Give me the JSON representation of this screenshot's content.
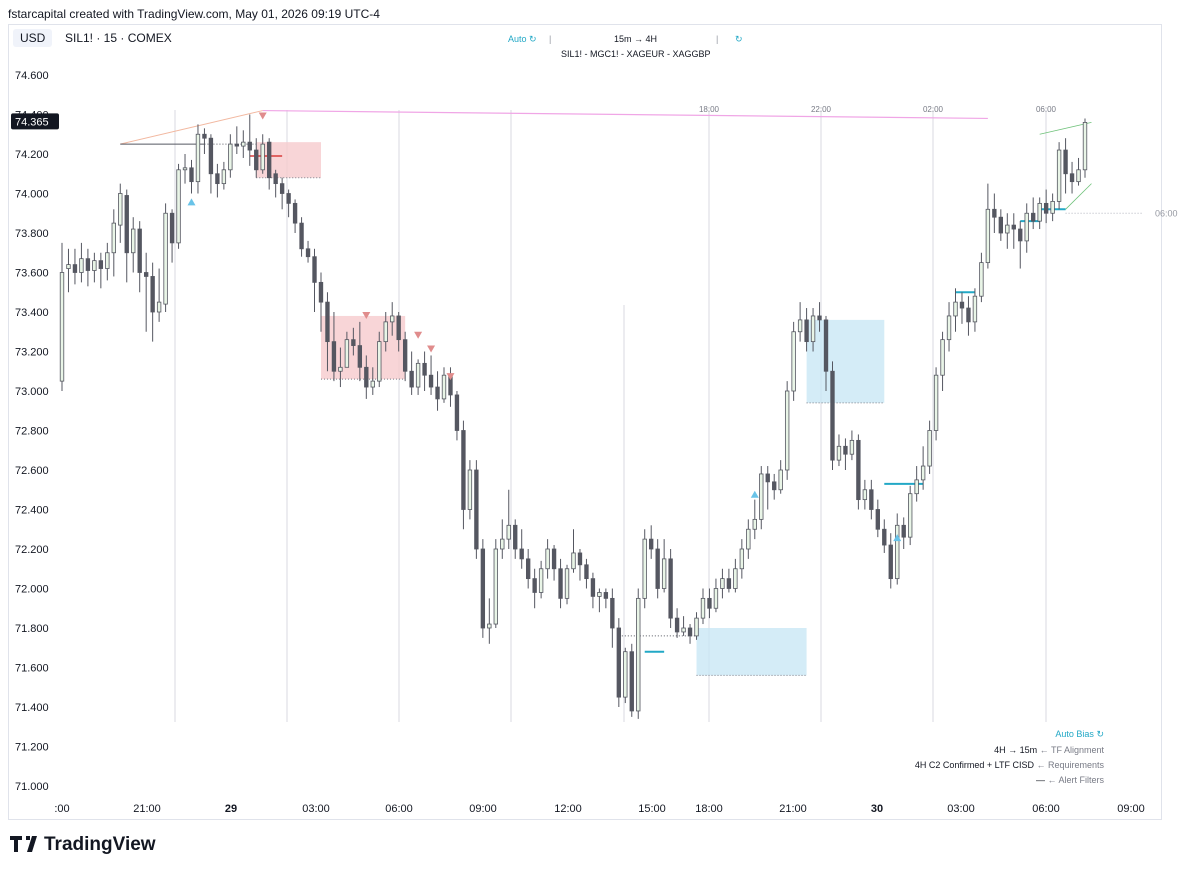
{
  "header": {
    "attribution": "fstarcapital created with TradingView.com, May 01, 2026 09:19 UTC-4"
  },
  "toolbar": {
    "currency": "USD",
    "symbol": "SIL1! · 15 · COMEX"
  },
  "top_widget": {
    "auto_label": "Auto",
    "timeframes": "15m → 4H",
    "symbols": "SIL1! - MGC1! - XAGEUR - XAGGBP"
  },
  "legend": {
    "title": "Auto Bias",
    "rows": [
      {
        "value": "4H → 15m",
        "hint": "← TF Alignment"
      },
      {
        "value": "4H C2 Confirmed + LTF CISD",
        "hint": "← Requirements"
      },
      {
        "value": "—",
        "hint": "← Alert Filters"
      }
    ]
  },
  "colors": {
    "bull_body": "#e9f5e7",
    "bear_body": "#555761",
    "wick": "#555761",
    "bear_zone": "#f6cbcd",
    "bull_zone": "#c9e7f5",
    "accent_cyan": "#22a8c6",
    "marker_up": "#69c3e8",
    "marker_down": "#e08c8c",
    "pink_line": "#f0a6e6"
  },
  "brand": {
    "name": "TradingView"
  },
  "chart_data": {
    "type": "candlestick",
    "interval": "15",
    "ylim": [
      70.95,
      74.65
    ],
    "y_ticks": [
      "74.600",
      "74.400",
      "74.200",
      "74.000",
      "73.800",
      "73.600",
      "73.400",
      "73.200",
      "73.000",
      "72.800",
      "72.600",
      "72.400",
      "72.200",
      "72.000",
      "71.800",
      "71.600",
      "71.400",
      "71.200",
      "71.000"
    ],
    "last_price": "74.365",
    "x_ticks": [
      ":00",
      "21:00",
      "29",
      "03:00",
      "06:00",
      "09:00",
      "12:00",
      "15:00",
      "18:00",
      "21:00",
      "30",
      "03:00",
      "06:00",
      "09:00"
    ],
    "session_labels": [
      "18:00",
      "22:00",
      "02:00",
      "06:00"
    ],
    "right_label": "06:00",
    "candles": [
      [
        73.05,
        73.6,
        73.75,
        73.0
      ],
      [
        73.62,
        73.64,
        73.72,
        73.5
      ],
      [
        73.64,
        73.6,
        73.72,
        73.54
      ],
      [
        73.6,
        73.67,
        73.75,
        73.55
      ],
      [
        73.67,
        73.61,
        73.72,
        73.53
      ],
      [
        73.61,
        73.66,
        73.7,
        73.55
      ],
      [
        73.66,
        73.62,
        73.7,
        73.52
      ],
      [
        73.62,
        73.7,
        73.75,
        73.56
      ],
      [
        73.7,
        73.85,
        73.92,
        73.58
      ],
      [
        73.84,
        74.0,
        74.05,
        73.75
      ],
      [
        73.99,
        73.7,
        74.02,
        73.55
      ],
      [
        73.7,
        73.82,
        73.88,
        73.6
      ],
      [
        73.82,
        73.6,
        73.86,
        73.5
      ],
      [
        73.6,
        73.58,
        73.7,
        73.3
      ],
      [
        73.58,
        73.4,
        73.65,
        73.25
      ],
      [
        73.4,
        73.45,
        73.62,
        73.35
      ],
      [
        73.44,
        73.9,
        73.95,
        73.4
      ],
      [
        73.9,
        73.75,
        73.92,
        73.65
      ],
      [
        73.75,
        74.12,
        74.15,
        73.72
      ],
      [
        74.12,
        74.13,
        74.2,
        74.05
      ],
      [
        74.13,
        74.06,
        74.17,
        74.0
      ],
      [
        74.06,
        74.3,
        74.35,
        74.0
      ],
      [
        74.3,
        74.28,
        74.33,
        74.2
      ],
      [
        74.28,
        74.1,
        74.3,
        74.0
      ],
      [
        74.1,
        74.05,
        74.15,
        73.98
      ],
      [
        74.05,
        74.12,
        74.16,
        74.02
      ],
      [
        74.12,
        74.25,
        74.3,
        74.08
      ],
      [
        74.25,
        74.24,
        74.34,
        74.2
      ],
      [
        74.24,
        74.26,
        74.32,
        74.18
      ],
      [
        74.26,
        74.22,
        74.4,
        74.14
      ],
      [
        74.22,
        74.12,
        74.28,
        74.08
      ],
      [
        74.12,
        74.25,
        74.3,
        74.1
      ],
      [
        74.26,
        74.08,
        74.28,
        74.02
      ],
      [
        74.1,
        74.05,
        74.12,
        73.98
      ],
      [
        74.05,
        74.0,
        74.08,
        73.92
      ],
      [
        74.0,
        73.95,
        74.02,
        73.88
      ],
      [
        73.95,
        73.85,
        73.97,
        73.8
      ],
      [
        73.85,
        73.72,
        73.88,
        73.68
      ],
      [
        73.72,
        73.68,
        73.76,
        73.65
      ],
      [
        73.68,
        73.55,
        73.72,
        73.4
      ],
      [
        73.55,
        73.45,
        73.6,
        73.3
      ],
      [
        73.45,
        73.25,
        73.5,
        73.1
      ],
      [
        73.25,
        73.1,
        73.4,
        73.05
      ],
      [
        73.1,
        73.12,
        73.22,
        73.02
      ],
      [
        73.12,
        73.26,
        73.3,
        73.15
      ],
      [
        73.26,
        73.23,
        73.32,
        73.18
      ],
      [
        73.23,
        73.12,
        73.35,
        73.05
      ],
      [
        73.12,
        73.02,
        73.18,
        72.96
      ],
      [
        73.02,
        73.05,
        73.12,
        72.98
      ],
      [
        73.05,
        73.25,
        73.3,
        73.02
      ],
      [
        73.25,
        73.35,
        73.4,
        73.2
      ],
      [
        73.35,
        73.38,
        73.45,
        73.28
      ],
      [
        73.38,
        73.26,
        73.4,
        73.2
      ],
      [
        73.26,
        73.1,
        73.3,
        73.05
      ],
      [
        73.1,
        73.02,
        73.2,
        72.98
      ],
      [
        73.02,
        73.14,
        73.16,
        72.98
      ],
      [
        73.14,
        73.08,
        73.2,
        73.0
      ],
      [
        73.08,
        73.02,
        73.18,
        72.98
      ],
      [
        73.02,
        72.96,
        73.1,
        72.9
      ],
      [
        72.96,
        73.08,
        73.12,
        72.94
      ],
      [
        73.08,
        72.98,
        73.12,
        72.92
      ],
      [
        72.98,
        72.8,
        73.0,
        72.75
      ],
      [
        72.8,
        72.4,
        72.85,
        72.3
      ],
      [
        72.4,
        72.6,
        72.65,
        72.35
      ],
      [
        72.6,
        72.2,
        72.65,
        72.15
      ],
      [
        72.2,
        71.8,
        72.25,
        71.75
      ],
      [
        71.8,
        71.82,
        71.95,
        71.72
      ],
      [
        71.82,
        72.2,
        72.25,
        71.8
      ],
      [
        72.2,
        72.25,
        72.35,
        72.15
      ],
      [
        72.25,
        72.32,
        72.5,
        72.2
      ],
      [
        72.32,
        72.2,
        72.35,
        72.15
      ],
      [
        72.2,
        72.15,
        72.3,
        72.1
      ],
      [
        72.15,
        72.05,
        72.2,
        72.0
      ],
      [
        72.05,
        71.98,
        72.1,
        71.9
      ],
      [
        71.98,
        72.1,
        72.14,
        71.95
      ],
      [
        72.1,
        72.2,
        72.25,
        72.05
      ],
      [
        72.2,
        72.1,
        72.22,
        72.04
      ],
      [
        72.1,
        71.95,
        72.15,
        71.9
      ],
      [
        71.95,
        72.1,
        72.12,
        71.92
      ],
      [
        72.1,
        72.18,
        72.3,
        72.08
      ],
      [
        72.18,
        72.12,
        72.2,
        72.04
      ],
      [
        72.12,
        72.05,
        72.15,
        72.0
      ],
      [
        72.05,
        71.96,
        72.08,
        71.9
      ],
      [
        71.96,
        71.98,
        72.0,
        71.88
      ],
      [
        71.98,
        71.95,
        72.0,
        71.9
      ],
      [
        71.95,
        71.8,
        72.0,
        71.7
      ],
      [
        71.8,
        71.45,
        71.85,
        71.4
      ],
      [
        71.45,
        71.68,
        71.7,
        71.42
      ],
      [
        71.68,
        71.38,
        71.72,
        71.35
      ],
      [
        71.38,
        71.95,
        72.0,
        71.34
      ],
      [
        71.95,
        72.25,
        72.3,
        71.9
      ],
      [
        72.25,
        72.2,
        72.32,
        72.15
      ],
      [
        72.2,
        72.0,
        72.25,
        71.95
      ],
      [
        72.0,
        72.15,
        72.25,
        71.98
      ],
      [
        72.15,
        71.85,
        72.2,
        71.8
      ],
      [
        71.85,
        71.78,
        71.9,
        71.75
      ],
      [
        71.78,
        71.8,
        71.86,
        71.76
      ],
      [
        71.8,
        71.76,
        71.82,
        71.72
      ],
      [
        71.76,
        71.85,
        71.88,
        71.74
      ],
      [
        71.85,
        71.95,
        72.0,
        71.82
      ],
      [
        71.95,
        71.9,
        72.0,
        71.85
      ],
      [
        71.9,
        72.0,
        72.05,
        71.88
      ],
      [
        72.0,
        72.05,
        72.1,
        71.95
      ],
      [
        72.05,
        72.0,
        72.1,
        71.98
      ],
      [
        72.0,
        72.1,
        72.15,
        71.98
      ],
      [
        72.1,
        72.2,
        72.25,
        72.05
      ],
      [
        72.2,
        72.3,
        72.35,
        72.15
      ],
      [
        72.3,
        72.35,
        72.45,
        72.25
      ],
      [
        72.35,
        72.58,
        72.62,
        72.3
      ],
      [
        72.58,
        72.54,
        72.62,
        72.4
      ],
      [
        72.54,
        72.5,
        72.58,
        72.45
      ],
      [
        72.5,
        72.6,
        72.65,
        72.48
      ],
      [
        72.6,
        73.0,
        73.05,
        72.55
      ],
      [
        73.0,
        73.3,
        73.35,
        72.95
      ],
      [
        73.3,
        73.36,
        73.45,
        73.25
      ],
      [
        73.36,
        73.25,
        73.42,
        73.2
      ],
      [
        73.25,
        73.38,
        73.42,
        73.2
      ],
      [
        73.38,
        73.36,
        73.45,
        73.3
      ],
      [
        73.36,
        73.1,
        73.38,
        73.0
      ],
      [
        73.1,
        72.65,
        73.15,
        72.6
      ],
      [
        72.65,
        72.72,
        72.78,
        72.62
      ],
      [
        72.72,
        72.68,
        72.76,
        72.6
      ],
      [
        72.68,
        72.75,
        72.8,
        72.65
      ],
      [
        72.75,
        72.45,
        72.78,
        72.4
      ],
      [
        72.45,
        72.5,
        72.55,
        72.4
      ],
      [
        72.5,
        72.4,
        72.55,
        72.35
      ],
      [
        72.4,
        72.3,
        72.45,
        72.26
      ],
      [
        72.3,
        72.22,
        72.35,
        72.18
      ],
      [
        72.22,
        72.05,
        72.28,
        72.0
      ],
      [
        72.05,
        72.32,
        72.38,
        72.02
      ],
      [
        72.32,
        72.26,
        72.36,
        72.2
      ],
      [
        72.26,
        72.48,
        72.52,
        72.22
      ],
      [
        72.48,
        72.55,
        72.62,
        72.44
      ],
      [
        72.55,
        72.62,
        72.72,
        72.5
      ],
      [
        72.62,
        72.8,
        72.85,
        72.58
      ],
      [
        72.8,
        73.08,
        73.12,
        72.75
      ],
      [
        73.08,
        73.26,
        73.3,
        73.0
      ],
      [
        73.26,
        73.38,
        73.45,
        73.2
      ],
      [
        73.38,
        73.45,
        73.52,
        73.3
      ],
      [
        73.45,
        73.42,
        73.5,
        73.34
      ],
      [
        73.42,
        73.35,
        73.48,
        73.28
      ],
      [
        73.35,
        73.48,
        73.52,
        73.3
      ],
      [
        73.48,
        73.65,
        73.7,
        73.45
      ],
      [
        73.65,
        73.92,
        74.05,
        73.62
      ],
      [
        73.92,
        73.88,
        74.0,
        73.8
      ],
      [
        73.88,
        73.8,
        73.92,
        73.76
      ],
      [
        73.8,
        73.84,
        73.9,
        73.72
      ],
      [
        73.84,
        73.82,
        73.9,
        73.72
      ],
      [
        73.82,
        73.76,
        73.86,
        73.62
      ],
      [
        73.76,
        73.9,
        73.95,
        73.7
      ],
      [
        73.9,
        73.86,
        73.98,
        73.82
      ],
      [
        73.86,
        73.95,
        73.98,
        73.82
      ],
      [
        73.95,
        73.9,
        74.02,
        73.85
      ],
      [
        73.9,
        73.96,
        74.0,
        73.86
      ],
      [
        73.96,
        74.22,
        74.26,
        73.92
      ],
      [
        74.22,
        74.1,
        74.28,
        74.0
      ],
      [
        74.1,
        74.06,
        74.16,
        74.0
      ],
      [
        74.06,
        74.12,
        74.18,
        74.04
      ],
      [
        74.12,
        74.36,
        74.38,
        74.08
      ]
    ],
    "zones": [
      {
        "kind": "bear",
        "x0": 30,
        "x1": 40,
        "top": 74.26,
        "bottom": 74.08
      },
      {
        "kind": "bear",
        "x0": 40,
        "x1": 53,
        "top": 73.38,
        "bottom": 73.06
      },
      {
        "kind": "bull",
        "x0": 98,
        "x1": 115,
        "top": 71.8,
        "bottom": 71.56
      },
      {
        "kind": "bull",
        "x0": 115,
        "x1": 127,
        "top": 73.36,
        "bottom": 72.94
      }
    ],
    "markers": [
      {
        "kind": "up",
        "i": 20,
        "price": 73.96
      },
      {
        "kind": "down",
        "i": 31,
        "price": 74.39
      },
      {
        "kind": "down",
        "i": 47,
        "price": 73.38
      },
      {
        "kind": "down",
        "i": 55,
        "price": 73.28
      },
      {
        "kind": "down",
        "i": 57,
        "price": 73.21
      },
      {
        "kind": "down",
        "i": 60,
        "price": 73.07
      },
      {
        "kind": "up",
        "i": 107,
        "price": 72.48
      },
      {
        "kind": "up",
        "i": 129,
        "price": 72.26
      }
    ]
  }
}
